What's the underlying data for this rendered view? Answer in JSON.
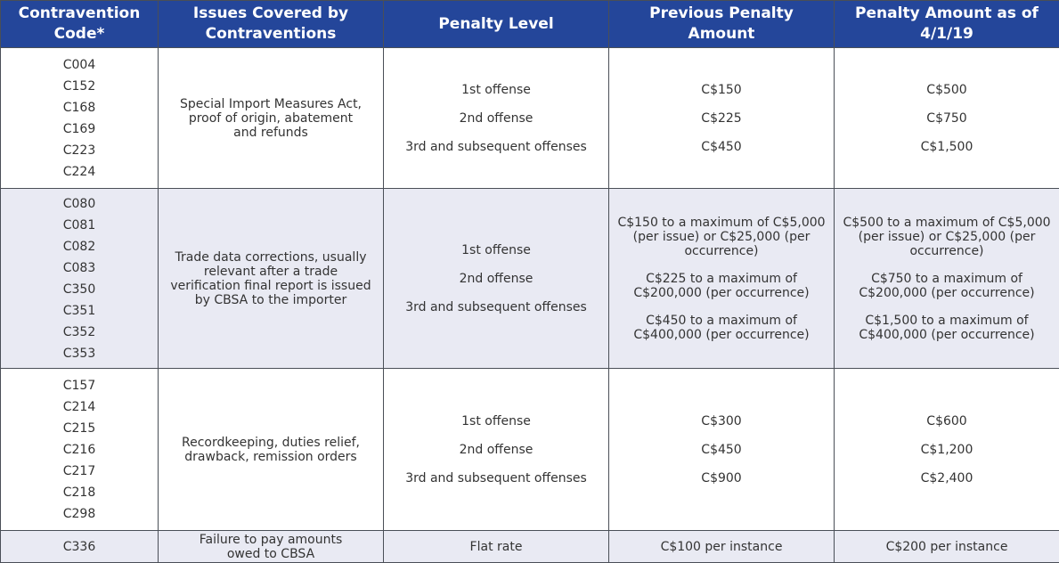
{
  "table": {
    "headers": [
      "Contravention Code*",
      "Issues Covered by Contraventions",
      "Penalty Level",
      "Previous Penalty Amount",
      "Penalty Amount as of 4/1/19"
    ],
    "rows": [
      {
        "codes": [
          "C004",
          "C152",
          "C168",
          "C169",
          "C223",
          "C224"
        ],
        "issue": "Special Import Measures Act, proof of origin, abatement and refunds",
        "levels": [
          "1st offense",
          "2nd offense",
          "3rd and subsequent offenses"
        ],
        "previous": [
          "C$150",
          "C$225",
          "C$450"
        ],
        "current": [
          "C$500",
          "C$750",
          "C$1,500"
        ]
      },
      {
        "codes": [
          "C080",
          "C081",
          "C082",
          "C083",
          "C350",
          "C351",
          "C352",
          "C353"
        ],
        "issue": "Trade data corrections, usually relevant after a trade verification final report is issued by CBSA to the importer",
        "levels": [
          "1st offense",
          "2nd offense",
          "3rd and subsequent offenses"
        ],
        "previous": [
          "C$150 to a maximum of C$5,000 (per issue) or C$25,000 (per occurrence)",
          "C$225 to a maximum of C$200,000 (per occurrence)",
          "C$450 to a maximum of C$400,000 (per occurrence)"
        ],
        "current": [
          "C$500 to a maximum of C$5,000 (per issue) or C$25,000 (per occurrence)",
          "C$750 to a maximum of C$200,000 (per occurrence)",
          "C$1,500 to a maximum of C$400,000 (per occurrence)"
        ]
      },
      {
        "codes": [
          "C157",
          "C214",
          "C215",
          "C216",
          "C217",
          "C218",
          "C298"
        ],
        "issue": "Recordkeeping, duties relief, drawback, remission orders",
        "levels": [
          "1st offense",
          "2nd offense",
          "3rd and subsequent offenses"
        ],
        "previous": [
          "C$300",
          "C$450",
          "C$900"
        ],
        "current": [
          "C$600",
          "C$1,200",
          "C$2,400"
        ]
      },
      {
        "codes": [
          "C336"
        ],
        "issue": "Failure to pay amounts owed to CBSA",
        "levels": [
          "Flat rate"
        ],
        "previous": [
          "C$100 per instance"
        ],
        "current": [
          "C$200 per instance"
        ]
      }
    ]
  }
}
